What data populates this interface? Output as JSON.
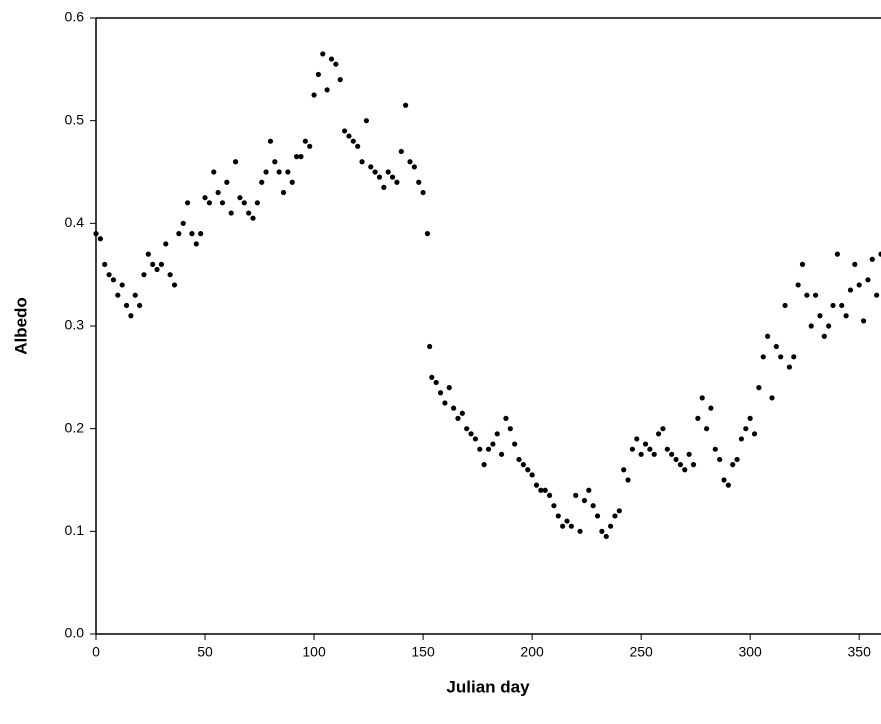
{
  "chart_data": {
    "type": "scatter",
    "x_label": "Julian day",
    "y_label": "Albedo",
    "xlim": [
      0,
      360
    ],
    "ylim": [
      0,
      0.6
    ],
    "xticks": [
      0,
      50,
      100,
      150,
      200,
      250,
      300,
      350
    ],
    "yticks": [
      {
        "value": 0,
        "label": "0.0"
      },
      0.1,
      0.2,
      0.3,
      0.4,
      0.5,
      0.6
    ],
    "color": "#000000",
    "x": [
      0,
      2,
      4,
      6,
      8,
      10,
      12,
      14,
      16,
      18,
      20,
      22,
      24,
      26,
      28,
      30,
      32,
      34,
      36,
      38,
      40,
      42,
      44,
      46,
      48,
      50,
      52,
      54,
      56,
      58,
      60,
      62,
      64,
      66,
      68,
      70,
      72,
      74,
      76,
      78,
      80,
      82,
      84,
      86,
      88,
      90,
      92,
      94,
      96,
      98,
      100,
      102,
      104,
      106,
      108,
      110,
      112,
      114,
      116,
      118,
      120,
      122,
      124,
      126,
      128,
      130,
      132,
      134,
      136,
      138,
      140,
      142,
      144,
      146,
      148,
      150,
      152,
      153,
      154,
      156,
      158,
      160,
      162,
      164,
      166,
      168,
      170,
      172,
      174,
      176,
      178,
      180,
      182,
      184,
      186,
      188,
      190,
      192,
      194,
      196,
      198,
      200,
      202,
      204,
      206,
      208,
      210,
      212,
      214,
      216,
      218,
      220,
      222,
      224,
      226,
      228,
      230,
      232,
      234,
      236,
      238,
      240,
      242,
      244,
      246,
      248,
      250,
      252,
      254,
      256,
      258,
      260,
      262,
      264,
      266,
      268,
      270,
      272,
      274,
      276,
      278,
      280,
      282,
      284,
      286,
      288,
      290,
      292,
      294,
      296,
      298,
      300,
      302,
      304,
      306,
      308,
      310,
      312,
      314,
      316,
      318,
      320,
      322,
      324,
      326,
      328,
      330,
      332,
      334,
      336,
      338,
      340,
      342,
      344,
      346,
      348,
      350,
      352,
      354,
      356,
      358,
      360
    ],
    "values": [
      0.39,
      0.385,
      0.36,
      0.35,
      0.345,
      0.33,
      0.34,
      0.32,
      0.31,
      0.33,
      0.32,
      0.35,
      0.37,
      0.36,
      0.355,
      0.36,
      0.38,
      0.35,
      0.34,
      0.39,
      0.4,
      0.42,
      0.39,
      0.38,
      0.39,
      0.425,
      0.42,
      0.45,
      0.43,
      0.42,
      0.44,
      0.41,
      0.46,
      0.425,
      0.42,
      0.41,
      0.405,
      0.42,
      0.44,
      0.45,
      0.48,
      0.46,
      0.45,
      0.43,
      0.45,
      0.44,
      0.465,
      0.465,
      0.48,
      0.475,
      0.525,
      0.545,
      0.565,
      0.53,
      0.56,
      0.555,
      0.54,
      0.49,
      0.485,
      0.48,
      0.475,
      0.46,
      0.5,
      0.455,
      0.45,
      0.445,
      0.435,
      0.45,
      0.445,
      0.44,
      0.47,
      0.515,
      0.46,
      0.455,
      0.44,
      0.43,
      0.39,
      0.28,
      0.25,
      0.245,
      0.235,
      0.225,
      0.24,
      0.22,
      0.21,
      0.215,
      0.2,
      0.195,
      0.19,
      0.18,
      0.165,
      0.18,
      0.185,
      0.195,
      0.175,
      0.21,
      0.2,
      0.185,
      0.17,
      0.165,
      0.16,
      0.155,
      0.145,
      0.14,
      0.14,
      0.135,
      0.125,
      0.115,
      0.105,
      0.11,
      0.105,
      0.135,
      0.1,
      0.13,
      0.14,
      0.125,
      0.115,
      0.1,
      0.095,
      0.105,
      0.115,
      0.12,
      0.16,
      0.15,
      0.18,
      0.19,
      0.175,
      0.185,
      0.18,
      0.175,
      0.195,
      0.2,
      0.18,
      0.175,
      0.17,
      0.165,
      0.16,
      0.175,
      0.165,
      0.21,
      0.23,
      0.2,
      0.22,
      0.18,
      0.17,
      0.15,
      0.145,
      0.165,
      0.17,
      0.19,
      0.2,
      0.21,
      0.195,
      0.24,
      0.27,
      0.29,
      0.23,
      0.28,
      0.27,
      0.32,
      0.26,
      0.27,
      0.34,
      0.36,
      0.33,
      0.3,
      0.33,
      0.31,
      0.29,
      0.3,
      0.32,
      0.37,
      0.32,
      0.31,
      0.335,
      0.36,
      0.34,
      0.305,
      0.345,
      0.365,
      0.33,
      0.37
    ]
  }
}
